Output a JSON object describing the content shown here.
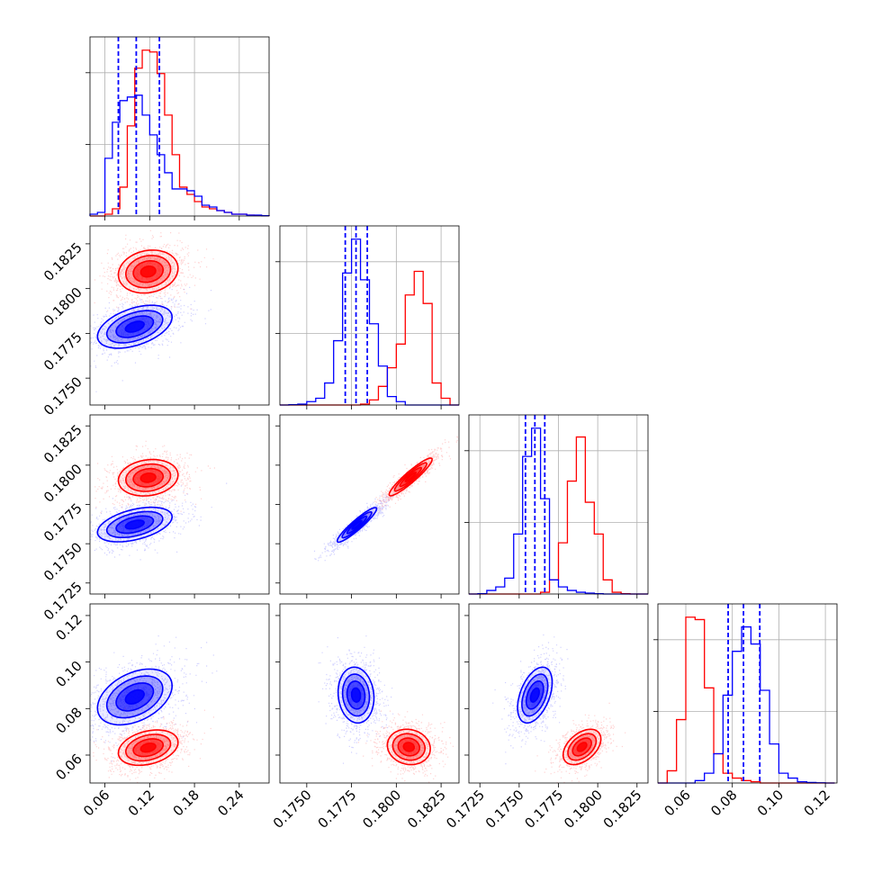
{
  "chart_data": {
    "type": "corner",
    "title": "",
    "grid": true,
    "series": [
      {
        "name": "",
        "color": "#0000ff",
        "quantiles": [
          [
            0.078,
            0.102,
            0.133
          ],
          [
            0.17715,
            0.17775,
            0.17838
          ],
          [
            0.1754,
            0.176,
            0.17663
          ],
          [
            0.0782,
            0.0848,
            0.0918
          ]
        ]
      },
      {
        "name": "",
        "color": "#ff0000"
      }
    ],
    "parameters": [
      {
        "range": [
          0.04,
          0.28
        ],
        "ticks": [
          0.06,
          0.12,
          0.18,
          0.24
        ],
        "tick_labels": [
          "0.06",
          "0.12",
          "0.18",
          "0.24"
        ]
      },
      {
        "range": [
          0.1735,
          0.1835
        ],
        "ticks": [
          0.175,
          0.1775,
          0.18,
          0.1825
        ],
        "tick_labels": [
          "0.1750",
          "0.1775",
          "0.1800",
          "0.1825"
        ]
      },
      {
        "range": [
          0.1718,
          0.1832
        ],
        "ticks": [
          0.1725,
          0.175,
          0.1775,
          0.18,
          0.1825
        ],
        "tick_labels": [
          "0.1725",
          "0.1750",
          "0.1775",
          "0.1800",
          "0.1825"
        ]
      },
      {
        "range": [
          0.048,
          0.125
        ],
        "ticks": [
          0.06,
          0.08,
          0.1,
          0.12
        ],
        "tick_labels": [
          "0.06",
          "0.08",
          "0.10",
          "0.12"
        ]
      }
    ],
    "histograms": [
      {
        "bins": [
          0.04,
          0.05,
          0.06,
          0.07,
          0.08,
          0.09,
          0.1,
          0.11,
          0.12,
          0.13,
          0.14,
          0.15,
          0.16,
          0.17,
          0.18,
          0.19,
          0.2,
          0.21,
          0.22,
          0.23,
          0.24,
          0.25,
          0.26,
          0.27,
          0.28
        ],
        "blue": [
          0.01,
          0.02,
          0.32,
          0.52,
          0.64,
          0.66,
          0.67,
          0.56,
          0.45,
          0.34,
          0.24,
          0.15,
          0.15,
          0.14,
          0.11,
          0.06,
          0.05,
          0.03,
          0.02,
          0.01,
          0.01,
          0.005,
          0.005,
          0.002
        ],
        "red": [
          0.0,
          0.0,
          0.01,
          0.04,
          0.16,
          0.5,
          0.82,
          0.92,
          0.91,
          0.79,
          0.56,
          0.34,
          0.16,
          0.12,
          0.08,
          0.05,
          0.04,
          0.03,
          0.02,
          0.01,
          0.01,
          0.005,
          0.003,
          0.002
        ]
      },
      {
        "bins": [
          0.1735,
          0.174,
          0.1745,
          0.175,
          0.1755,
          0.176,
          0.1765,
          0.177,
          0.1775,
          0.178,
          0.1785,
          0.179,
          0.1795,
          0.18,
          0.1805,
          0.181,
          0.1815,
          0.182,
          0.1825,
          0.183,
          0.1835
        ],
        "blue": [
          0.0,
          0.002,
          0.005,
          0.02,
          0.04,
          0.13,
          0.38,
          0.78,
          0.98,
          0.74,
          0.48,
          0.23,
          0.05,
          0.02,
          0.0,
          0.0,
          0.0,
          0.0,
          0.0,
          0.0
        ],
        "red": [
          0.0,
          0.0,
          0.0,
          0.0,
          0.0,
          0.0,
          0.0,
          0.0,
          0.0,
          0.005,
          0.03,
          0.11,
          0.22,
          0.36,
          0.65,
          0.79,
          0.6,
          0.13,
          0.04,
          0.0
        ]
      },
      {
        "bins": [
          0.1718,
          0.17237,
          0.17294,
          0.17351,
          0.17408,
          0.17465,
          0.17522,
          0.17579,
          0.17636,
          0.17693,
          0.1775,
          0.17807,
          0.17864,
          0.17921,
          0.17978,
          0.18035,
          0.18092,
          0.18149,
          0.18206,
          0.18263,
          0.1832
        ],
        "blue": [
          0.0,
          0.002,
          0.02,
          0.04,
          0.09,
          0.34,
          0.78,
          0.94,
          0.54,
          0.08,
          0.04,
          0.02,
          0.01,
          0.005,
          0.002,
          0.0,
          0.0,
          0.0,
          0.0,
          0.0
        ],
        "red": [
          0.0,
          0.0,
          0.0,
          0.0,
          0.0,
          0.0,
          0.0,
          0.0,
          0.01,
          0.08,
          0.29,
          0.64,
          0.89,
          0.52,
          0.34,
          0.08,
          0.01,
          0.002,
          0.0,
          0.0
        ]
      },
      {
        "bins": [
          0.048,
          0.052,
          0.056,
          0.06,
          0.064,
          0.068,
          0.072,
          0.076,
          0.08,
          0.084,
          0.088,
          0.092,
          0.096,
          0.1,
          0.104,
          0.108,
          0.112,
          0.116,
          0.12,
          0.124
        ],
        "blue": [
          0.0,
          0.0,
          0.0,
          0.0,
          0.01,
          0.04,
          0.12,
          0.36,
          0.54,
          0.64,
          0.57,
          0.38,
          0.16,
          0.04,
          0.02,
          0.005,
          0.002,
          0.001,
          0.0
        ],
        "red": [
          0.0,
          0.05,
          0.26,
          0.68,
          0.67,
          0.39,
          0.12,
          0.04,
          0.02,
          0.01,
          0.005,
          0.0,
          0.0,
          0.0,
          0.0,
          0.0,
          0.0,
          0.0,
          0.0
        ]
      }
    ],
    "pairs": [
      {
        "row": 1,
        "col": 0,
        "blue": {
          "mean": [
            0.1,
            0.17787
          ],
          "sd": [
            0.025,
            0.0006
          ],
          "rho": 0.45
        },
        "red": {
          "mean": [
            0.118,
            0.18095
          ],
          "sd": [
            0.02,
            0.0006
          ],
          "rho": 0.15
        }
      },
      {
        "row": 2,
        "col": 0,
        "blue": {
          "mean": [
            0.1,
            0.17622
          ],
          "sd": [
            0.025,
            0.00055
          ],
          "rho": 0.45
        },
        "red": {
          "mean": [
            0.118,
            0.1792
          ],
          "sd": [
            0.02,
            0.00058
          ],
          "rho": 0.15
        }
      },
      {
        "row": 2,
        "col": 1,
        "blue": {
          "mean": [
            0.1778,
            0.1762
          ],
          "sd": [
            0.00055,
            0.00055
          ],
          "rho": 0.93
        },
        "red": {
          "mean": [
            0.1808,
            0.17925
          ],
          "sd": [
            0.0006,
            0.0006
          ],
          "rho": 0.93
        }
      },
      {
        "row": 3,
        "col": 0,
        "blue": {
          "mean": [
            0.1,
            0.085
          ],
          "sd": [
            0.025,
            0.006
          ],
          "rho": 0.4
        },
        "red": {
          "mean": [
            0.118,
            0.0632
          ],
          "sd": [
            0.02,
            0.0038
          ],
          "rho": 0.3
        }
      },
      {
        "row": 3,
        "col": 1,
        "blue": {
          "mean": [
            0.17775,
            0.0858
          ],
          "sd": [
            0.0005,
            0.006
          ],
          "rho": -0.1
        },
        "red": {
          "mean": [
            0.1807,
            0.0635
          ],
          "sd": [
            0.0006,
            0.0038
          ],
          "rho": -0.1
        }
      },
      {
        "row": 3,
        "col": 2,
        "blue": {
          "mean": [
            0.176,
            0.0858
          ],
          "sd": [
            0.00055,
            0.006
          ],
          "rho": 0.45
        },
        "red": {
          "mean": [
            0.179,
            0.0635
          ],
          "sd": [
            0.0006,
            0.0038
          ],
          "rho": 0.45
        }
      }
    ]
  }
}
